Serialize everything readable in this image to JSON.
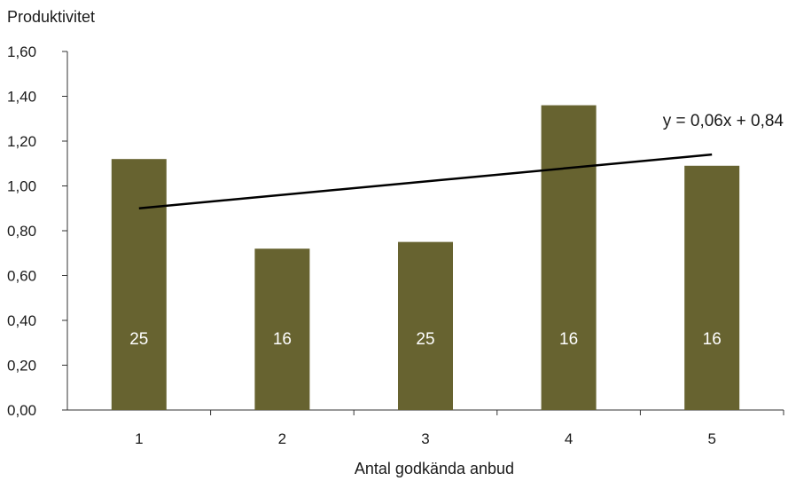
{
  "chart_data": {
    "type": "bar",
    "title": "",
    "ylabel": "Produktivitet",
    "xlabel": "Antal godkända anbud",
    "categories": [
      "1",
      "2",
      "3",
      "4",
      "5"
    ],
    "values": [
      1.12,
      0.72,
      0.75,
      1.36,
      1.09
    ],
    "bar_labels": [
      "25",
      "16",
      "25",
      "16",
      "16"
    ],
    "ylim": [
      0,
      1.6
    ],
    "yticks": [
      "0,00",
      "0,20",
      "0,40",
      "0,60",
      "0,80",
      "1,00",
      "1,20",
      "1,40",
      "1,60"
    ],
    "grid": false,
    "bar_color": "#676330",
    "trendline": {
      "label": "y = 0,06x + 0,84",
      "slope": 0.06,
      "intercept": 0.84,
      "color": "#000000"
    }
  }
}
